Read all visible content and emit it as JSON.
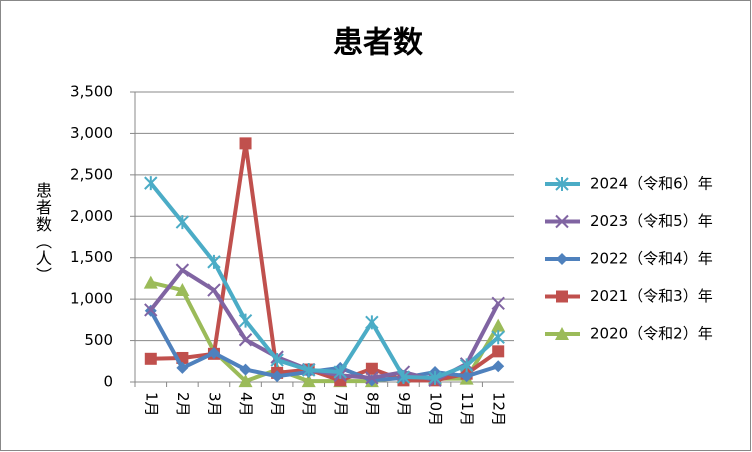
{
  "chart_data": {
    "type": "line",
    "title": "患者数",
    "y_label": "患者数（人）",
    "categories": [
      "1月",
      "2月",
      "3月",
      "4月",
      "5月",
      "6月",
      "7月",
      "8月",
      "9月",
      "10月",
      "11月",
      "12月"
    ],
    "ylim": [
      0,
      3500
    ],
    "yticks": [
      0,
      {
        "value": 500,
        "label": "500"
      },
      {
        "value": 1000,
        "label": "1,000"
      },
      {
        "value": 1500,
        "label": "1,500"
      },
      {
        "value": 2000,
        "label": "2,000"
      },
      {
        "value": 2500,
        "label": "2,500"
      },
      {
        "value": 3000,
        "label": "3,000"
      },
      {
        "value": 3500,
        "label": "3,500"
      }
    ],
    "grid": true,
    "legend": "right",
    "series": [
      {
        "name": "2024（令和6）年",
        "color": "#4bacc6",
        "marker": "asterisk",
        "values": [
          2400,
          1930,
          1450,
          740,
          265,
          145,
          120,
          720,
          60,
          50,
          200,
          540
        ]
      },
      {
        "name": "2023（令和5）年",
        "color": "#8064a2",
        "marker": "x",
        "values": [
          870,
          1350,
          1110,
          510,
          300,
          150,
          80,
          50,
          120,
          20,
          220,
          950
        ]
      },
      {
        "name": "2022（令和4）年",
        "color": "#4f81bd",
        "marker": "diamond",
        "values": [
          860,
          170,
          350,
          150,
          70,
          120,
          170,
          20,
          50,
          120,
          70,
          190
        ]
      },
      {
        "name": "2021（令和3）年",
        "color": "#c0504d",
        "marker": "square",
        "values": [
          280,
          290,
          340,
          2880,
          110,
          150,
          20,
          160,
          20,
          20,
          100,
          370
        ]
      },
      {
        "name": "2020（令和2）年",
        "color": "#9bbb59",
        "marker": "triangle",
        "values": [
          1200,
          1110,
          370,
          10,
          150,
          10,
          10,
          10,
          60,
          40,
          40,
          680
        ]
      }
    ]
  }
}
